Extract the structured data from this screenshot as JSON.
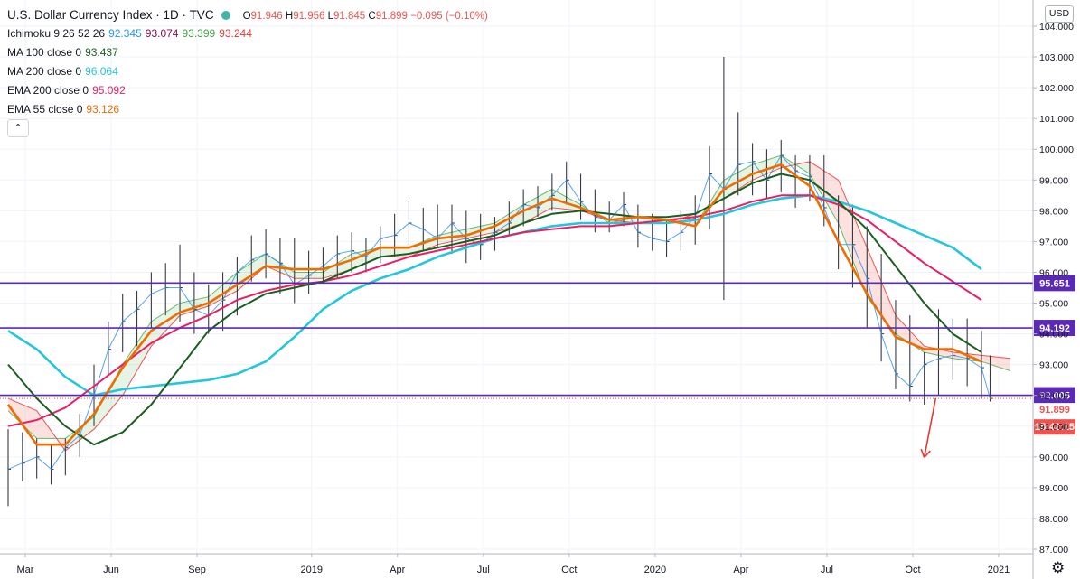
{
  "header": {
    "title": "U.S. Dollar Currency Index · 1D · TVC",
    "ohlc": [
      {
        "k": "O",
        "v": "91.946"
      },
      {
        "k": "H",
        "v": "91.956"
      },
      {
        "k": "L",
        "v": "91.845"
      },
      {
        "k": "C",
        "v": "91.899"
      }
    ],
    "change": "−0.095 (−0.10%)",
    "collapse_glyph": "⌃"
  },
  "indicators": [
    {
      "name": "Ichimoku 9 26 52 26",
      "values": [
        {
          "v": "92.345",
          "color": "#2196f3"
        },
        {
          "v": "93.074",
          "color": "#880e4f"
        },
        {
          "v": "93.399",
          "color": "#43a047"
        },
        {
          "v": "93.244",
          "color": "#e53935"
        }
      ]
    },
    {
      "name": "MA 100 close 0",
      "values": [
        {
          "v": "93.437",
          "color": "#1b5e20"
        }
      ]
    },
    {
      "name": "MA 200 close 0",
      "values": [
        {
          "v": "96.064",
          "color": "#26c6da"
        }
      ]
    },
    {
      "name": "EMA 200 close 0",
      "values": [
        {
          "v": "95.092",
          "color": "#e91e63"
        }
      ]
    },
    {
      "name": "EMA 55 close 0",
      "values": [
        {
          "v": "93.126",
          "color": "#ef6c00"
        }
      ]
    }
  ],
  "currency_label": "USD",
  "settings_icon": "gear-icon",
  "chart_data": {
    "type": "line",
    "y_axis_ticks": [
      "104.000",
      "103.000",
      "102.000",
      "101.000",
      "100.000",
      "99.000",
      "98.000",
      "97.000",
      "96.000",
      "95.000",
      "94.000",
      "93.000",
      "92.000",
      "91.000",
      "90.000",
      "89.000",
      "88.000",
      "87.000"
    ],
    "ylim": [
      86.9,
      104.1
    ],
    "x_axis_ticks": [
      {
        "label": "Mar",
        "t": 0.6
      },
      {
        "label": "Jun",
        "t": 3.6
      },
      {
        "label": "Sep",
        "t": 6.6
      },
      {
        "label": "2019",
        "t": 10.6
      },
      {
        "label": "Apr",
        "t": 13.6
      },
      {
        "label": "Jul",
        "t": 16.6
      },
      {
        "label": "Oct",
        "t": 19.6
      },
      {
        "label": "2020",
        "t": 22.6
      },
      {
        "label": "Apr",
        "t": 25.6
      },
      {
        "label": "Jul",
        "t": 28.6
      },
      {
        "label": "Oct",
        "t": 31.6
      },
      {
        "label": "2021",
        "t": 34.6
      }
    ],
    "xlim": [
      0,
      36.8
    ],
    "horizontal_levels": [
      {
        "value": 95.651,
        "label": "95.651",
        "color": "#5b2ab5"
      },
      {
        "value": 94.192,
        "label": "94.192",
        "color": "#5b2ab5"
      },
      {
        "value": 92.005,
        "label": "92.005",
        "color": "#5b2ab5"
      }
    ],
    "last_price": {
      "value": 91.899,
      "label": "91.899",
      "countdown": "15:42:15",
      "color": "#ef5350"
    },
    "price": {
      "t": [
        0,
        0.5,
        1,
        1.5,
        2,
        2.5,
        3,
        3.5,
        4,
        4.5,
        5,
        5.5,
        6,
        6.5,
        7,
        7.5,
        8,
        8.5,
        9,
        9.5,
        10,
        10.5,
        11,
        11.5,
        12,
        12.5,
        13,
        13.5,
        14,
        14.5,
        15,
        15.5,
        16,
        16.5,
        17,
        17.5,
        18,
        18.5,
        19,
        19.5,
        20,
        20.5,
        21,
        21.5,
        22,
        22.5,
        23,
        23.5,
        24,
        24.5,
        25,
        25.5,
        26,
        26.5,
        27,
        27.5,
        28,
        28.5,
        29,
        29.5,
        30,
        30.5,
        31,
        31.5,
        32,
        32.5,
        33,
        33.5,
        34,
        34.3
      ],
      "high": [
        90.9,
        90.8,
        90.6,
        90.4,
        90.6,
        91.4,
        93.0,
        94.4,
        95.3,
        95.4,
        96.0,
        96.3,
        96.9,
        96.0,
        95.6,
        96.0,
        96.5,
        97.2,
        97.4,
        97.1,
        97.1,
        96.7,
        96.8,
        97.2,
        97.3,
        97.1,
        97.5,
        97.9,
        98.3,
        98.1,
        98.2,
        98.2,
        98.0,
        97.9,
        97.8,
        98.3,
        98.7,
        98.8,
        99.2,
        99.6,
        99.2,
        98.7,
        98.3,
        98.6,
        98.2,
        97.9,
        97.7,
        98.0,
        98.5,
        100.1,
        103.0,
        101.2,
        100.2,
        100.0,
        100.3,
        99.8,
        99.8,
        99.8,
        98.5,
        98.2,
        97.5,
        96.6,
        95.1,
        94.6,
        93.4,
        94.8,
        94.5,
        94.5,
        94.1,
        93.3
      ],
      "low": [
        88.4,
        89.2,
        89.3,
        89.1,
        89.4,
        90.0,
        91.0,
        92.7,
        93.4,
        93.6,
        94.2,
        94.6,
        94.4,
        94.0,
        94.0,
        94.1,
        94.6,
        95.7,
        95.8,
        95.3,
        95.0,
        95.3,
        95.7,
        95.8,
        96.0,
        96.0,
        96.3,
        96.5,
        96.9,
        96.7,
        96.8,
        96.6,
        96.3,
        96.4,
        96.7,
        97.2,
        97.5,
        97.8,
        98.0,
        98.2,
        97.7,
        97.3,
        97.3,
        97.5,
        96.8,
        96.7,
        96.5,
        96.7,
        96.9,
        97.4,
        95.1,
        98.5,
        98.5,
        98.4,
        98.6,
        98.1,
        98.3,
        97.5,
        96.1,
        95.5,
        94.2,
        93.1,
        92.2,
        91.8,
        91.7,
        92.0,
        92.5,
        92.3,
        91.9,
        91.8
      ],
      "close": [
        89.6,
        89.8,
        90.0,
        89.6,
        90.3,
        90.7,
        92.0,
        93.5,
        94.4,
        94.8,
        95.3,
        95.5,
        95.5,
        94.8,
        94.6,
        95.1,
        96.0,
        96.4,
        96.6,
        96.3,
        95.6,
        95.9,
        96.2,
        96.6,
        96.7,
        96.5,
        97.1,
        97.2,
        97.6,
        97.4,
        97.1,
        97.6,
        97.1,
        96.9,
        97.3,
        97.6,
        98.2,
        98.1,
        98.5,
        99.0,
        98.3,
        97.8,
        97.7,
        98.2,
        97.3,
        97.1,
        97.0,
        97.3,
        97.8,
        99.2,
        98.7,
        99.5,
        99.6,
        99.0,
        99.8,
        99.3,
        99.1,
        98.1,
        96.9,
        96.9,
        95.8,
        94.0,
        92.7,
        92.3,
        93.0,
        93.2,
        93.3,
        93.2,
        92.9,
        91.9
      ]
    },
    "series": [
      {
        "name": "MA 200 close 0",
        "color": "#26c6da",
        "width": 2.6,
        "t": [
          0,
          1,
          2,
          3,
          4,
          5,
          6,
          7,
          8,
          9,
          10,
          11,
          12,
          13,
          14,
          15,
          16,
          17,
          18,
          19,
          20,
          21,
          22,
          23,
          24,
          25,
          26,
          27,
          28,
          29,
          30,
          31,
          32,
          33,
          34
        ],
        "values": [
          94.1,
          93.5,
          92.6,
          92.0,
          92.2,
          92.3,
          92.4,
          92.5,
          92.7,
          93.1,
          93.9,
          94.8,
          95.4,
          95.8,
          96.1,
          96.5,
          96.8,
          97.1,
          97.3,
          97.5,
          97.6,
          97.6,
          97.6,
          97.6,
          97.7,
          97.9,
          98.2,
          98.4,
          98.5,
          98.3,
          98.0,
          97.6,
          97.2,
          96.8,
          96.1
        ]
      },
      {
        "name": "EMA 200 close 0",
        "color": "#e91e63",
        "width": 2.0,
        "t": [
          0,
          1,
          2,
          3,
          4,
          5,
          6,
          7,
          8,
          9,
          10,
          11,
          12,
          13,
          14,
          15,
          16,
          17,
          18,
          19,
          20,
          21,
          22,
          23,
          24,
          25,
          26,
          27,
          28,
          29,
          30,
          31,
          32,
          33,
          34
        ],
        "values": [
          91.0,
          91.2,
          91.6,
          92.3,
          93.0,
          93.7,
          94.2,
          94.6,
          95.1,
          95.4,
          95.6,
          95.7,
          95.9,
          96.2,
          96.5,
          96.7,
          96.9,
          97.1,
          97.3,
          97.4,
          97.5,
          97.5,
          97.6,
          97.7,
          97.8,
          98.0,
          98.3,
          98.5,
          98.5,
          98.2,
          97.7,
          97.0,
          96.3,
          95.7,
          95.1
        ]
      },
      {
        "name": "MA 100 close 0",
        "color": "#1b5e20",
        "width": 2.0,
        "t": [
          0,
          1,
          2,
          3,
          4,
          5,
          6,
          7,
          8,
          9,
          10,
          11,
          12,
          13,
          14,
          15,
          16,
          17,
          18,
          19,
          20,
          21,
          22,
          23,
          24,
          25,
          26,
          27,
          28,
          29,
          30,
          31,
          32,
          33,
          34
        ],
        "values": [
          93.0,
          91.9,
          91.0,
          90.4,
          90.8,
          91.7,
          92.9,
          94.1,
          94.8,
          95.3,
          95.5,
          95.7,
          96.1,
          96.5,
          96.6,
          96.8,
          97.0,
          97.2,
          97.6,
          97.9,
          98.0,
          97.9,
          97.8,
          97.8,
          97.9,
          98.4,
          98.9,
          99.2,
          99.0,
          98.3,
          97.4,
          96.2,
          95.0,
          94.0,
          93.4
        ]
      },
      {
        "name": "EMA 55 close 0",
        "color": "#ef6c00",
        "width": 2.6,
        "t": [
          0,
          1,
          2,
          3,
          4,
          5,
          6,
          7,
          8,
          9,
          10,
          11,
          12,
          13,
          14,
          15,
          16,
          17,
          18,
          19,
          20,
          21,
          22,
          23,
          24,
          25,
          26,
          27,
          28,
          29,
          30,
          31,
          32,
          33,
          34
        ],
        "values": [
          91.7,
          90.4,
          90.4,
          91.4,
          92.9,
          94.1,
          94.7,
          95.0,
          95.6,
          96.2,
          96.1,
          96.1,
          96.4,
          96.8,
          96.8,
          97.1,
          97.2,
          97.5,
          98.0,
          98.4,
          98.1,
          97.7,
          97.8,
          97.7,
          97.5,
          98.7,
          99.2,
          99.5,
          98.8,
          97.0,
          95.3,
          93.9,
          93.5,
          93.5,
          93.1
        ]
      }
    ],
    "cloud": {
      "t": [
        0,
        1,
        2,
        3,
        4,
        5,
        6,
        7,
        8,
        9,
        10,
        11,
        12,
        13,
        14,
        15,
        16,
        17,
        18,
        19,
        20,
        21,
        22,
        23,
        24,
        25,
        26,
        27,
        28,
        29,
        30,
        31,
        32,
        33,
        34,
        35
      ],
      "span_a": [
        91.5,
        90.6,
        90.6,
        91.3,
        93.0,
        94.4,
        95.0,
        95.2,
        96.0,
        96.6,
        96.0,
        96.0,
        96.6,
        96.8,
        96.8,
        97.2,
        97.4,
        97.6,
        98.2,
        98.7,
        98.2,
        97.6,
        97.8,
        97.7,
        97.5,
        99.0,
        99.5,
        99.8,
        99.2,
        97.6,
        95.2,
        94.0,
        93.4,
        93.2,
        93.1,
        92.8
      ],
      "span_b": [
        91.9,
        91.5,
        90.2,
        90.9,
        92.0,
        93.6,
        94.6,
        94.9,
        95.4,
        96.2,
        95.8,
        95.8,
        96.1,
        96.5,
        96.5,
        96.9,
        97.1,
        97.3,
        97.6,
        98.1,
        98.0,
        97.7,
        97.6,
        97.6,
        97.9,
        98.4,
        99.0,
        99.4,
        99.6,
        99.0,
        96.8,
        94.6,
        93.6,
        93.4,
        93.3,
        93.2
      ]
    },
    "annotation": {
      "type": "arrow",
      "from": [
        32.4,
        91.9
      ],
      "to": [
        32.0,
        89.98
      ],
      "color": "#e53935"
    }
  }
}
